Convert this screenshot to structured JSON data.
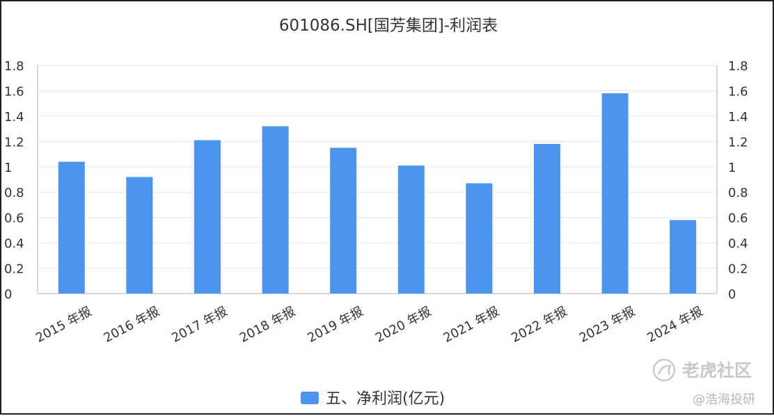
{
  "chart_data": {
    "type": "bar",
    "title": "601086.SH[国芳集团]-利润表",
    "categories": [
      "2015 年报",
      "2016 年报",
      "2017 年报",
      "2018 年报",
      "2019 年报",
      "2020 年报",
      "2021 年报",
      "2022 年报",
      "2023 年报",
      "2024 年报"
    ],
    "series": [
      {
        "name": "五、净利润(亿元)",
        "values": [
          1.04,
          0.92,
          1.21,
          1.32,
          1.15,
          1.01,
          0.87,
          1.18,
          1.58,
          0.58
        ]
      }
    ],
    "ylim": [
      0,
      1.8
    ],
    "yticks": [
      "0",
      "0.2",
      "0.4",
      "0.6",
      "0.8",
      "1",
      "1.2",
      "1.4",
      "1.6",
      "1.8"
    ],
    "grid": true,
    "legend": "bottom-center",
    "colors": {
      "bar": "#4d94ec",
      "grid": "#e3e6ec",
      "axis": "#c8ccd6"
    }
  },
  "watermark": {
    "main": "老虎社区",
    "sub": "@浩海投研",
    "icon": "tiger-logo-icon"
  }
}
